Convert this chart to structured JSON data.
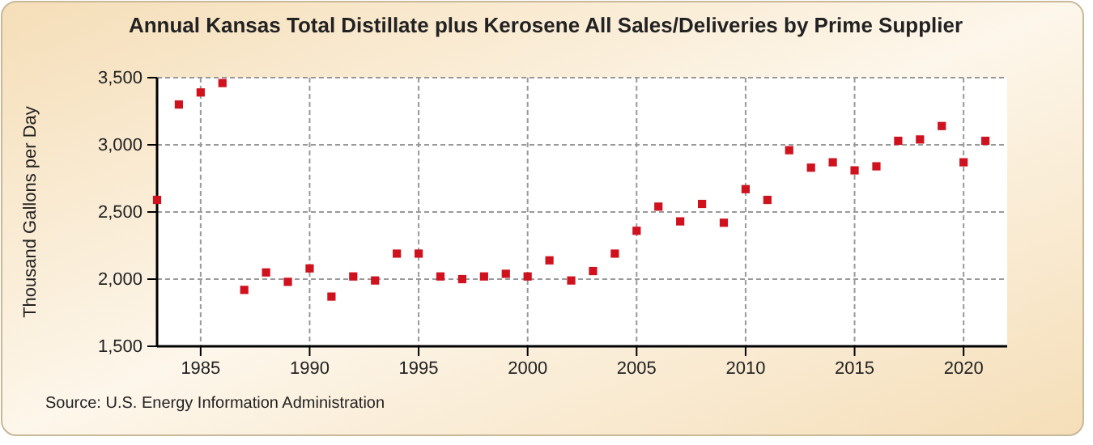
{
  "chart_data": {
    "type": "scatter",
    "title": "Annual Kansas Total Distillate plus Kerosene All Sales/Deliveries by Prime Supplier",
    "ylabel": "Thousand Gallons per Day",
    "annotations": [
      "Source: U.S. Energy Information Administration"
    ],
    "x": [
      1983,
      1984,
      1985,
      1986,
      1987,
      1988,
      1989,
      1990,
      1991,
      1992,
      1993,
      1994,
      1995,
      1996,
      1997,
      1998,
      1999,
      2000,
      2001,
      2002,
      2003,
      2004,
      2005,
      2006,
      2007,
      2008,
      2009,
      2010,
      2011,
      2012,
      2013,
      2014,
      2015,
      2016,
      2017,
      2018,
      2019,
      2020,
      2021
    ],
    "series": [
      {
        "color": "#d0121e",
        "values": [
          2590,
          3300,
          3390,
          3460,
          1920,
          2050,
          1980,
          2080,
          1870,
          2020,
          1990,
          2190,
          2190,
          2020,
          2000,
          2020,
          2040,
          2020,
          2140,
          1990,
          2060,
          2190,
          2360,
          2540,
          2430,
          2560,
          2420,
          2670,
          2590,
          2960,
          2830,
          2870,
          2810,
          2840,
          3030,
          3040,
          3140,
          2870,
          3030
        ]
      }
    ],
    "xlim": [
      1983,
      2022
    ],
    "xticks": [
      1985,
      1990,
      1995,
      2000,
      2005,
      2010,
      2015,
      2020
    ],
    "ylim": [
      1500,
      3500
    ],
    "yticks": [
      {
        "value": 1500,
        "label": "1,500"
      },
      {
        "value": 2000,
        "label": "2,000"
      },
      {
        "value": 2500,
        "label": "2,500"
      },
      {
        "value": 3000,
        "label": "3,000"
      },
      {
        "value": 3500,
        "label": "3,500"
      }
    ],
    "grid": true,
    "marker": "square"
  }
}
